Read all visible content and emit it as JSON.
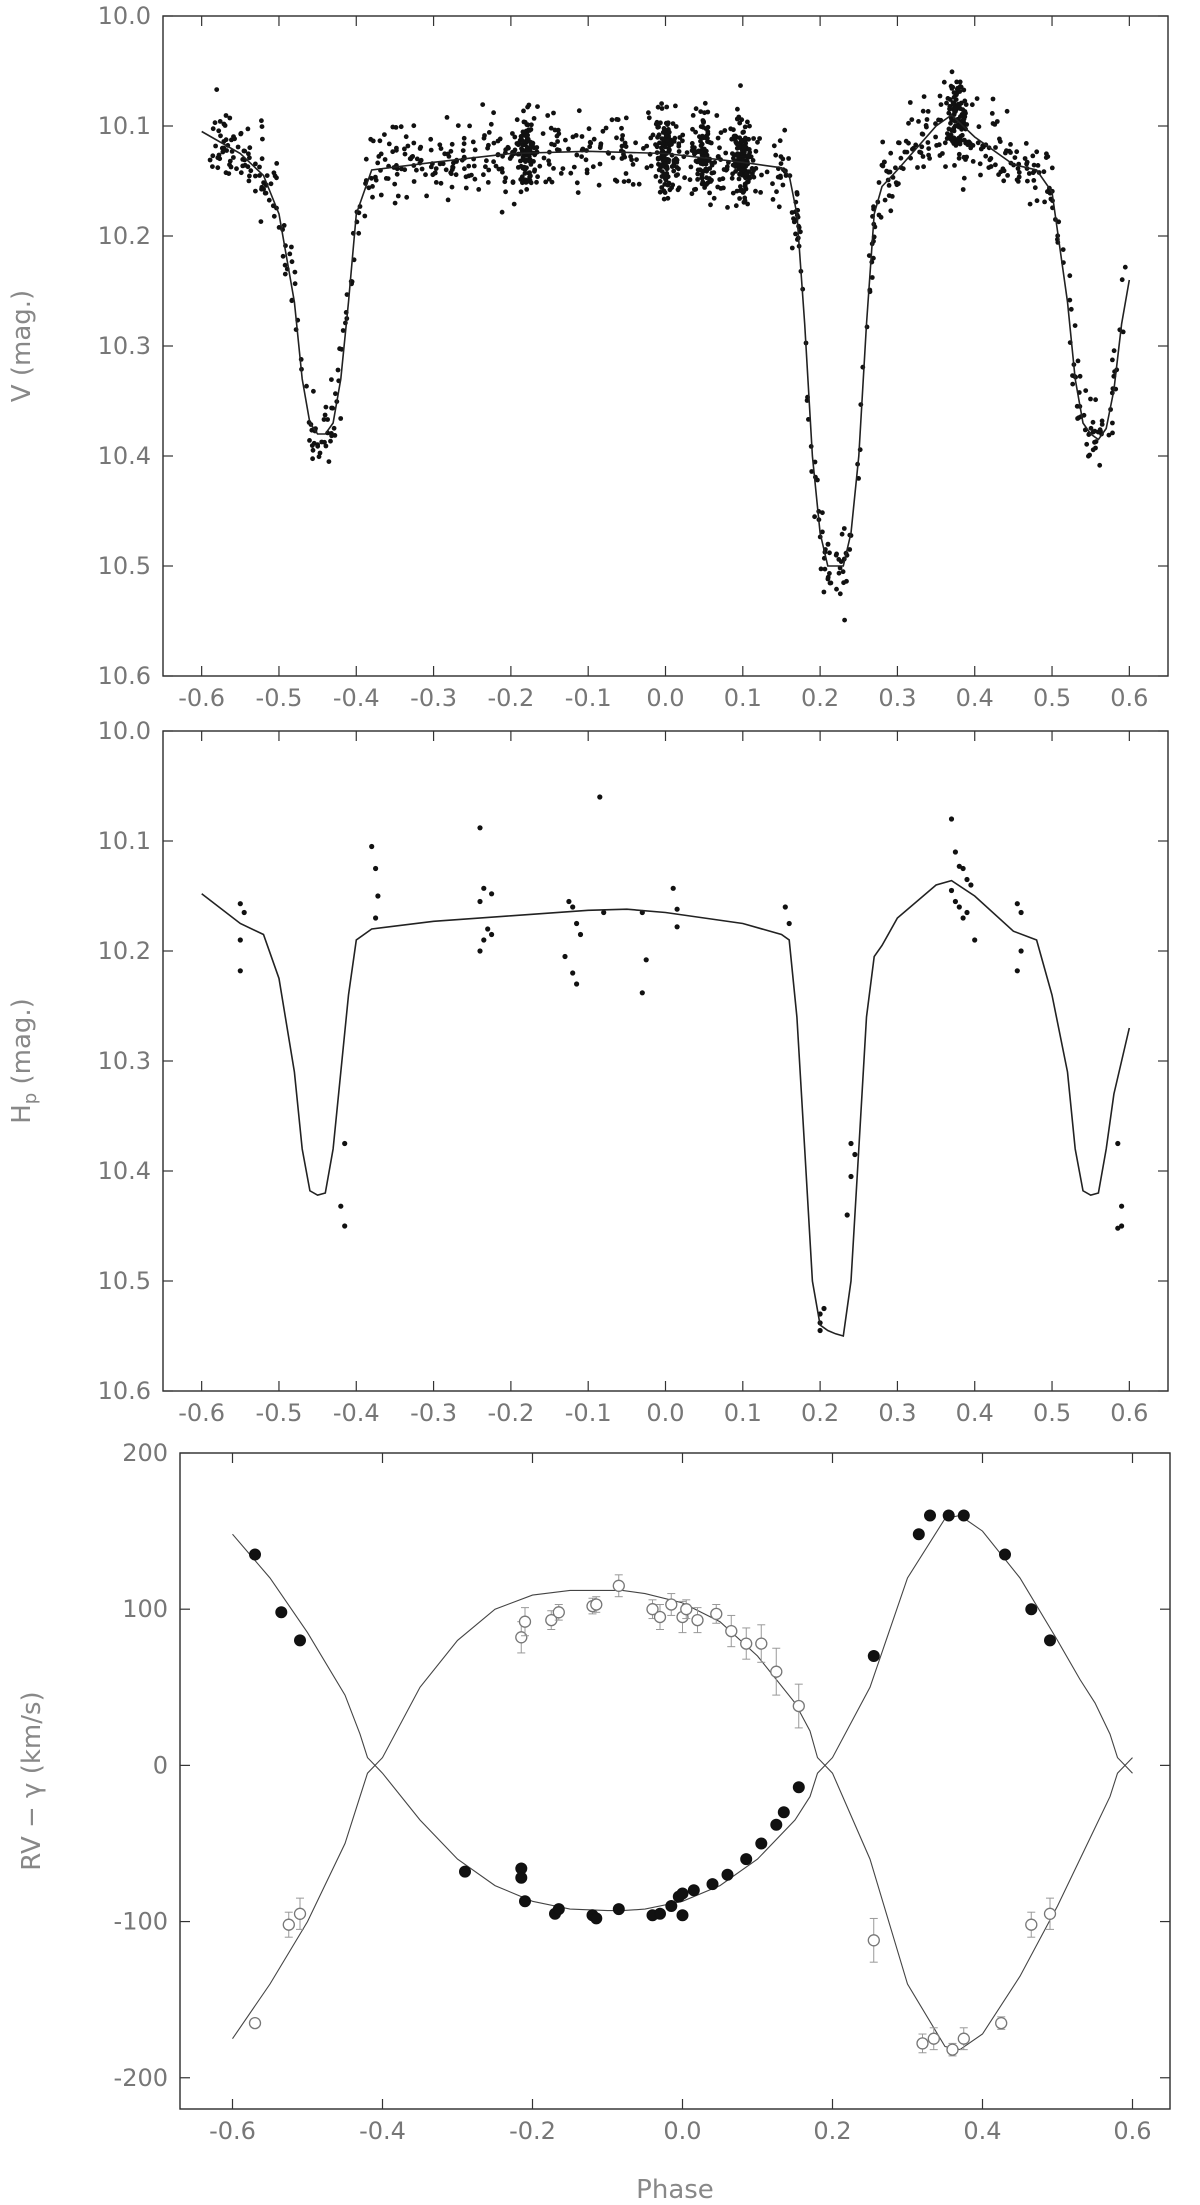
{
  "chart_data": [
    {
      "type": "scatter",
      "xlabel": "",
      "ylabel": "V (mag.)",
      "xlim": [
        -0.65,
        0.65
      ],
      "ylim": [
        10.6,
        10.0
      ],
      "y_inverted": true,
      "xticks": [
        -0.6,
        -0.5,
        -0.4,
        -0.3,
        -0.2,
        -0.1,
        0.0,
        0.1,
        0.2,
        0.3,
        0.4,
        0.5,
        0.6
      ],
      "xtick_labels": [
        "-0.6",
        "-0.5",
        "-0.4",
        "-0.3",
        "-0.2",
        "-0.1",
        "0.0",
        "0.1",
        "0.2",
        "0.3",
        "0.4",
        "0.5",
        "0.6"
      ],
      "yticks": [
        10.0,
        10.1,
        10.2,
        10.3,
        10.4,
        10.5,
        10.6
      ],
      "ytick_labels": [
        "10.0",
        "10.1",
        "10.2",
        "10.3",
        "10.4",
        "10.5",
        "10.6"
      ],
      "model_curve": {
        "x": [
          -0.6,
          -0.55,
          -0.52,
          -0.5,
          -0.48,
          -0.47,
          -0.46,
          -0.45,
          -0.44,
          -0.43,
          -0.42,
          -0.41,
          -0.4,
          -0.38,
          -0.3,
          -0.2,
          -0.1,
          0.0,
          0.1,
          0.15,
          0.16,
          0.17,
          0.18,
          0.19,
          0.2,
          0.21,
          0.22,
          0.23,
          0.24,
          0.25,
          0.26,
          0.27,
          0.28,
          0.3,
          0.35,
          0.37,
          0.4,
          0.45,
          0.48,
          0.5,
          0.52,
          0.53,
          0.54,
          0.55,
          0.56,
          0.57,
          0.58,
          0.59,
          0.6
        ],
        "y": [
          10.105,
          10.125,
          10.145,
          10.18,
          10.26,
          10.33,
          10.37,
          10.38,
          10.38,
          10.37,
          10.33,
          10.26,
          10.18,
          10.14,
          10.133,
          10.125,
          10.123,
          10.125,
          10.133,
          10.138,
          10.145,
          10.18,
          10.28,
          10.4,
          10.47,
          10.5,
          10.5,
          10.5,
          10.47,
          10.4,
          10.28,
          10.18,
          10.155,
          10.14,
          10.1,
          10.09,
          10.11,
          10.135,
          10.14,
          10.16,
          10.26,
          10.33,
          10.37,
          10.38,
          10.385,
          10.375,
          10.34,
          10.28,
          10.24
        ]
      },
      "observations": "dense photometric scatter (~1500 points) following the model light curve with ±0.03 mag scatter"
    },
    {
      "type": "scatter",
      "xlabel": "",
      "ylabel": "Hp (mag.)",
      "ylabel_main": "H",
      "ylabel_sub": "p",
      "ylabel_rest": " (mag.)",
      "xlim": [
        -0.65,
        0.65
      ],
      "ylim": [
        10.6,
        10.0
      ],
      "y_inverted": true,
      "xticks": [
        -0.6,
        -0.5,
        -0.4,
        -0.3,
        -0.2,
        -0.1,
        0.0,
        0.1,
        0.2,
        0.3,
        0.4,
        0.5,
        0.6
      ],
      "xtick_labels": [
        "-0.6",
        "-0.5",
        "-0.4",
        "-0.3",
        "-0.2",
        "-0.1",
        "0.0",
        "0.1",
        "0.2",
        "0.3",
        "0.4",
        "0.5",
        "0.6"
      ],
      "yticks": [
        10.0,
        10.1,
        10.2,
        10.3,
        10.4,
        10.5,
        10.6
      ],
      "ytick_labels": [
        "10.0",
        "10.1",
        "10.2",
        "10.3",
        "10.4",
        "10.5",
        "10.6"
      ],
      "model_curve": {
        "x": [
          -0.6,
          -0.55,
          -0.52,
          -0.5,
          -0.48,
          -0.47,
          -0.46,
          -0.45,
          -0.44,
          -0.43,
          -0.42,
          -0.41,
          -0.4,
          -0.38,
          -0.3,
          -0.2,
          -0.1,
          -0.05,
          0.0,
          0.1,
          0.15,
          0.16,
          0.17,
          0.18,
          0.19,
          0.2,
          0.21,
          0.22,
          0.23,
          0.24,
          0.25,
          0.26,
          0.27,
          0.28,
          0.3,
          0.35,
          0.37,
          0.4,
          0.45,
          0.48,
          0.5,
          0.52,
          0.53,
          0.54,
          0.55,
          0.56,
          0.57,
          0.58,
          0.59,
          0.6
        ],
        "y": [
          10.148,
          10.175,
          10.185,
          10.225,
          10.31,
          10.38,
          10.418,
          10.422,
          10.42,
          10.38,
          10.31,
          10.24,
          10.19,
          10.18,
          10.173,
          10.168,
          10.163,
          10.162,
          10.165,
          10.175,
          10.185,
          10.19,
          10.26,
          10.38,
          10.5,
          10.54,
          10.545,
          10.548,
          10.55,
          10.5,
          10.38,
          10.26,
          10.205,
          10.195,
          10.17,
          10.14,
          10.136,
          10.15,
          10.182,
          10.19,
          10.24,
          10.31,
          10.38,
          10.418,
          10.422,
          10.42,
          10.38,
          10.33,
          10.3,
          10.27
        ]
      },
      "observations": {
        "x": [
          -0.55,
          -0.545,
          -0.55,
          -0.55,
          -0.42,
          -0.415,
          -0.415,
          -0.38,
          -0.375,
          -0.372,
          -0.375,
          -0.24,
          -0.235,
          -0.24,
          -0.23,
          -0.225,
          -0.235,
          -0.24,
          -0.225,
          -0.125,
          -0.12,
          -0.115,
          -0.11,
          -0.12,
          -0.115,
          -0.13,
          -0.085,
          -0.08,
          -0.03,
          -0.025,
          -0.03,
          0.01,
          0.015,
          0.015,
          0.155,
          0.16,
          0.2,
          0.2,
          0.205,
          0.2,
          0.235,
          0.24,
          0.24,
          0.245,
          0.37,
          0.375,
          0.37,
          0.38,
          0.385,
          0.39,
          0.395,
          0.38,
          0.375,
          0.39,
          0.385,
          0.4,
          0.455,
          0.46,
          0.46,
          0.455,
          0.585,
          0.59,
          0.59,
          0.585
        ],
        "y": [
          10.157,
          10.165,
          10.19,
          10.218,
          10.432,
          10.45,
          10.375,
          10.105,
          10.125,
          10.15,
          10.17,
          10.088,
          10.143,
          10.155,
          10.18,
          10.185,
          10.19,
          10.2,
          10.148,
          10.155,
          10.16,
          10.175,
          10.185,
          10.22,
          10.23,
          10.205,
          10.06,
          10.165,
          10.165,
          10.208,
          10.238,
          10.143,
          10.162,
          10.178,
          10.16,
          10.175,
          10.53,
          10.545,
          10.525,
          10.538,
          10.44,
          10.405,
          10.375,
          10.385,
          10.08,
          10.11,
          10.145,
          10.123,
          10.125,
          10.135,
          10.14,
          10.16,
          10.155,
          10.165,
          10.17,
          10.19,
          10.157,
          10.165,
          10.2,
          10.218,
          10.375,
          10.432,
          10.45,
          10.452
        ]
      }
    },
    {
      "type": "scatter",
      "xlabel": "Phase",
      "ylabel": "RV - γ (km/s)",
      "ylabel_main": "RV − γ (km/s)",
      "xlim": [
        -0.67,
        0.65
      ],
      "ylim": [
        -220,
        200
      ],
      "xticks": [
        -0.6,
        -0.4,
        -0.2,
        0.0,
        0.2,
        0.4,
        0.6
      ],
      "xtick_labels": [
        "-0.6",
        "-0.4",
        "-0.2",
        "0.0",
        "0.2",
        "0.4",
        "0.6"
      ],
      "yticks": [
        200,
        100,
        0,
        -100,
        -200
      ],
      "ytick_labels": [
        "200",
        "100",
        "0",
        "-100",
        "-200"
      ],
      "series": [
        {
          "marker": "filled",
          "x": [
            -0.57,
            -0.535,
            -0.51,
            -0.29,
            -0.215,
            -0.215,
            -0.21,
            -0.17,
            -0.165,
            -0.12,
            -0.115,
            -0.085,
            -0.04,
            -0.03,
            -0.015,
            -0.005,
            0.0,
            0.0,
            0.015,
            0.04,
            0.06,
            0.085,
            0.105,
            0.125,
            0.135,
            0.155,
            0.255,
            0.315,
            0.33,
            0.355,
            0.375,
            0.43,
            0.465,
            0.49
          ],
          "y": [
            135,
            98,
            80,
            -68,
            -66,
            -72,
            -87,
            -95,
            -92,
            -96,
            -98,
            -92,
            -96,
            -95,
            -90,
            -84,
            -82,
            -96,
            -80,
            -76,
            -70,
            -60,
            -50,
            -38,
            -30,
            -14,
            70,
            148,
            160,
            160,
            160,
            135,
            100,
            80
          ]
        },
        {
          "marker": "open",
          "x": [
            -0.57,
            -0.525,
            -0.51,
            -0.215,
            -0.21,
            -0.175,
            -0.165,
            -0.12,
            -0.115,
            -0.085,
            -0.04,
            -0.03,
            -0.015,
            0.0,
            0.005,
            0.02,
            0.045,
            0.065,
            0.085,
            0.105,
            0.125,
            0.155,
            0.255,
            0.32,
            0.335,
            0.36,
            0.375,
            0.425,
            0.465,
            0.49
          ],
          "y": [
            -165,
            -102,
            -95,
            82,
            92,
            93,
            98,
            102,
            103,
            115,
            100,
            95,
            103,
            95,
            100,
            93,
            97,
            86,
            78,
            78,
            60,
            38,
            -112,
            -178,
            -175,
            -182,
            -175,
            -165,
            -102,
            -95
          ],
          "yerr": [
            0,
            8,
            10,
            10,
            9,
            6,
            5,
            5,
            5,
            7,
            6,
            8,
            7,
            10,
            6,
            8,
            6,
            10,
            10,
            12,
            15,
            14,
            14,
            6,
            7,
            4,
            7,
            4,
            8,
            10
          ]
        }
      ],
      "model_curves": {
        "x": [
          -0.6,
          -0.55,
          -0.5,
          -0.45,
          -0.43,
          -0.42,
          -0.41,
          -0.4,
          -0.35,
          -0.3,
          -0.25,
          -0.2,
          -0.15,
          -0.1,
          -0.08,
          -0.05,
          0.0,
          0.05,
          0.1,
          0.15,
          0.17,
          0.18,
          0.19,
          0.2,
          0.25,
          0.3,
          0.35,
          0.37,
          0.4,
          0.45,
          0.5,
          0.53,
          0.55,
          0.57,
          0.58,
          0.59,
          0.6
        ],
        "primary": [
          148,
          120,
          85,
          45,
          20,
          5,
          0,
          -5,
          -35,
          -60,
          -77,
          -87,
          -92,
          -93,
          -93,
          -92,
          -87,
          -77,
          -60,
          -35,
          -20,
          -5,
          0,
          5,
          50,
          120,
          158,
          160,
          150,
          120,
          80,
          55,
          40,
          20,
          5,
          0,
          -5
        ],
        "secondary": [
          -175,
          -140,
          -100,
          -50,
          -20,
          -5,
          0,
          5,
          50,
          80,
          100,
          109,
          112,
          112,
          112,
          110,
          104,
          92,
          70,
          40,
          22,
          5,
          0,
          -5,
          -60,
          -140,
          -180,
          -182,
          -172,
          -135,
          -90,
          -60,
          -40,
          -20,
          -5,
          0,
          5
        ]
      }
    }
  ]
}
